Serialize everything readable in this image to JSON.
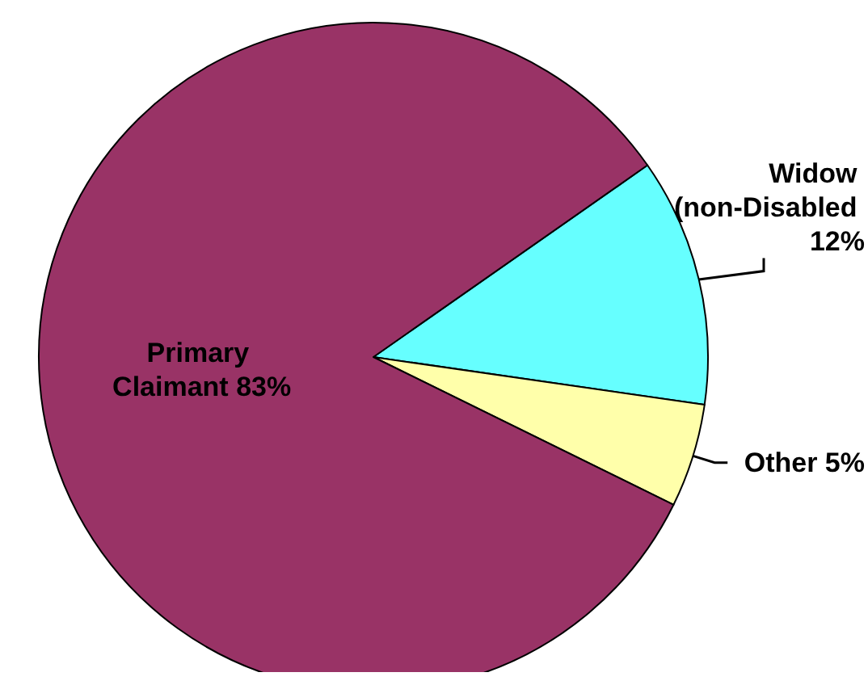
{
  "chart_data": {
    "type": "pie",
    "categories": [
      "Widow (non-Disabled",
      "Other",
      "Primary Claimant"
    ],
    "values": [
      12,
      5,
      83
    ],
    "colors": [
      "#66ffff",
      "#ffffaa",
      "#993366"
    ],
    "value_labels": [
      "12%",
      "5%",
      "83%"
    ],
    "legend": false
  }
}
